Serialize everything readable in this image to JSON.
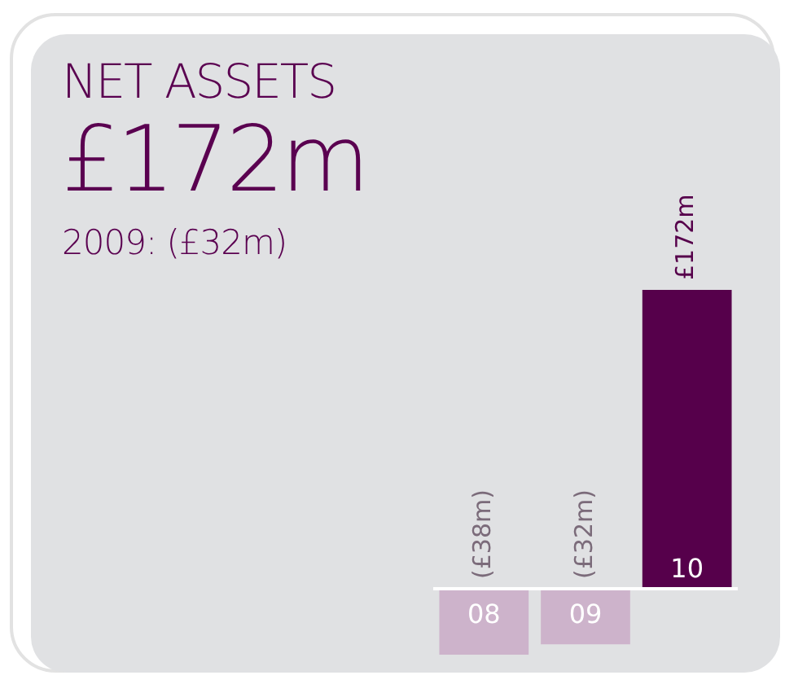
{
  "chart_data": {
    "type": "bar",
    "title": "NET ASSETS",
    "subtitle": "£172m",
    "annotations": [
      "2009: (£32m)"
    ],
    "categories": [
      "08",
      "09",
      "10"
    ],
    "values": [
      -38,
      -32,
      172
    ],
    "colors": [
      "#cdb3cb",
      "#cdb3cb",
      "#56004b"
    ],
    "value_labels": [
      "(£38m)",
      "(£32m)",
      "£172m"
    ],
    "legend": false
  }
}
